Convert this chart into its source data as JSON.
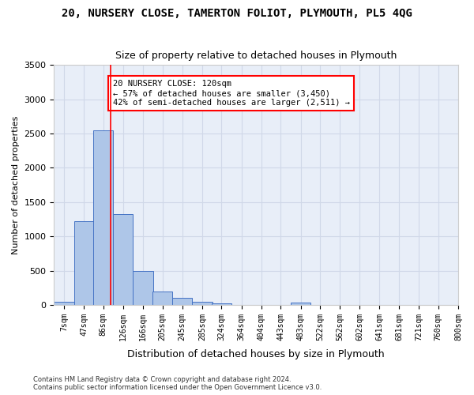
{
  "title": "20, NURSERY CLOSE, TAMERTON FOLIOT, PLYMOUTH, PL5 4QG",
  "subtitle": "Size of property relative to detached houses in Plymouth",
  "xlabel": "Distribution of detached houses by size in Plymouth",
  "ylabel": "Number of detached properties",
  "bar_color": "#aec6e8",
  "bar_edge_color": "#4472c4",
  "grid_color": "#d0d8e8",
  "background_color": "#e8eef8",
  "vline_x": 120,
  "vline_color": "red",
  "bins": [
    7,
    47,
    86,
    126,
    166,
    205,
    245,
    285,
    324,
    364,
    404,
    443,
    483,
    522,
    562,
    602,
    641,
    681,
    721,
    760,
    800
  ],
  "bin_labels": [
    "7sqm",
    "47sqm",
    "86sqm",
    "126sqm",
    "166sqm",
    "205sqm",
    "245sqm",
    "285sqm",
    "324sqm",
    "364sqm",
    "404sqm",
    "443sqm",
    "483sqm",
    "522sqm",
    "562sqm",
    "602sqm",
    "641sqm",
    "681sqm",
    "721sqm",
    "760sqm",
    "800sqm"
  ],
  "heights": [
    50,
    1220,
    2550,
    1330,
    500,
    195,
    100,
    45,
    25,
    0,
    0,
    0,
    30,
    0,
    0,
    0,
    0,
    0,
    0,
    0
  ],
  "ylim": [
    0,
    3500
  ],
  "yticks": [
    0,
    500,
    1000,
    1500,
    2000,
    2500,
    3000,
    3500
  ],
  "annotation_text": "20 NURSERY CLOSE: 120sqm\n← 57% of detached houses are smaller (3,450)\n42% of semi-detached houses are larger (2,511) →",
  "annotation_box_color": "white",
  "annotation_box_edge_color": "red",
  "footer_line1": "Contains HM Land Registry data © Crown copyright and database right 2024.",
  "footer_line2": "Contains public sector information licensed under the Open Government Licence v3.0."
}
